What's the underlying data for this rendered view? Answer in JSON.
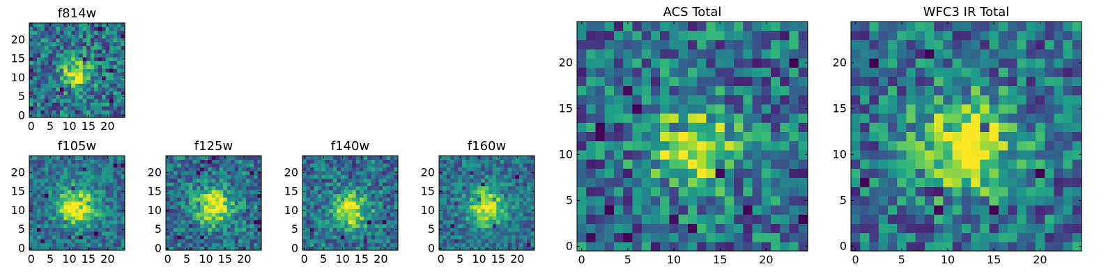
{
  "figure": {
    "colormap": "viridis",
    "axis_frame_color": "#000000",
    "background": "#ffffff"
  },
  "chart_data": [
    {
      "type": "heatmap",
      "title": "f814w",
      "grid": [
        25,
        25
      ],
      "center": [
        12,
        11
      ],
      "sigma": 2.6,
      "peak": 1.0,
      "noise": 0.28,
      "x_ticks": [
        "0",
        "5",
        "10",
        "15",
        "20"
      ],
      "y_ticks": [
        "0",
        "5",
        "10",
        "15",
        "20"
      ],
      "xlim": [
        -0.5,
        24.5
      ],
      "ylim": [
        -0.5,
        24.5
      ]
    },
    {
      "type": "heatmap",
      "title": "f105w",
      "grid": [
        25,
        25
      ],
      "center": [
        12,
        11
      ],
      "sigma": 3.6,
      "peak": 1.0,
      "noise": 0.2,
      "x_ticks": [
        "0",
        "5",
        "10",
        "15",
        "20"
      ],
      "y_ticks": [
        "0",
        "5",
        "10",
        "15",
        "20"
      ],
      "xlim": [
        -0.5,
        24.5
      ],
      "ylim": [
        -0.5,
        24.5
      ]
    },
    {
      "type": "heatmap",
      "title": "f125w",
      "grid": [
        25,
        25
      ],
      "center": [
        12,
        11
      ],
      "sigma": 3.4,
      "peak": 1.0,
      "noise": 0.24,
      "x_ticks": [
        "0",
        "5",
        "10",
        "15",
        "20"
      ],
      "y_ticks": [
        "0",
        "5",
        "10",
        "15",
        "20"
      ],
      "xlim": [
        -0.5,
        24.5
      ],
      "ylim": [
        -0.5,
        24.5
      ]
    },
    {
      "type": "heatmap",
      "title": "f140w",
      "grid": [
        25,
        25
      ],
      "center": [
        12,
        10
      ],
      "sigma": 3.2,
      "peak": 1.0,
      "noise": 0.24,
      "x_ticks": [
        "0",
        "5",
        "10",
        "15",
        "20"
      ],
      "y_ticks": [
        "0",
        "5",
        "10",
        "15",
        "20"
      ],
      "xlim": [
        -0.5,
        24.5
      ],
      "ylim": [
        -0.5,
        24.5
      ]
    },
    {
      "type": "heatmap",
      "title": "f160w",
      "grid": [
        25,
        25
      ],
      "center": [
        12,
        11
      ],
      "sigma": 3.4,
      "peak": 1.0,
      "noise": 0.2,
      "x_ticks": [
        "0",
        "5",
        "10",
        "15",
        "20"
      ],
      "y_ticks": [
        "0",
        "5",
        "10",
        "15",
        "20"
      ],
      "xlim": [
        -0.5,
        24.5
      ],
      "ylim": [
        -0.5,
        24.5
      ]
    },
    {
      "type": "heatmap",
      "title": "ACS Total",
      "grid": [
        25,
        25
      ],
      "center": [
        12,
        11
      ],
      "sigma": 3.0,
      "peak": 1.0,
      "noise": 0.3,
      "x_ticks": [
        "0",
        "5",
        "10",
        "15",
        "20"
      ],
      "y_ticks": [
        "0",
        "5",
        "10",
        "15",
        "20"
      ],
      "xlim": [
        -0.5,
        24.5
      ],
      "ylim": [
        -0.5,
        24.5
      ]
    },
    {
      "type": "heatmap",
      "title": "WFC3 IR Total",
      "grid": [
        25,
        25
      ],
      "center": [
        12,
        11
      ],
      "sigma": 3.6,
      "peak": 1.0,
      "noise": 0.28,
      "x_ticks": [
        "0",
        "5",
        "10",
        "15",
        "20"
      ],
      "y_ticks": [
        "0",
        "5",
        "10",
        "15",
        "20"
      ],
      "xlim": [
        -0.5,
        24.5
      ],
      "ylim": [
        -0.5,
        24.5
      ]
    }
  ]
}
